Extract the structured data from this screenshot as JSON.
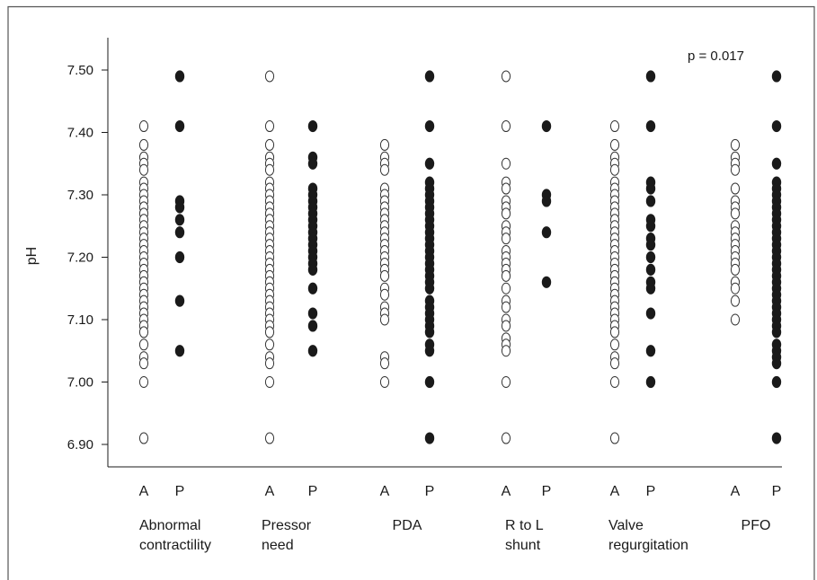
{
  "chart_data": {
    "type": "scatter",
    "ylabel": "pH",
    "ylim": [
      6.86,
      7.56
    ],
    "y_ticks": [
      "6.90",
      "7.00",
      "7.10",
      "7.20",
      "7.30",
      "7.40",
      "7.50"
    ],
    "annotation": "p = 0.017",
    "series": [
      {
        "name": "A",
        "style": "open"
      },
      {
        "name": "P",
        "style": "filled"
      }
    ],
    "groups": [
      {
        "label_lines": [
          "Abnormal",
          "contractility"
        ],
        "A": [
          7.41,
          7.38,
          7.36,
          7.35,
          7.34,
          7.32,
          7.31,
          7.3,
          7.29,
          7.28,
          7.27,
          7.26,
          7.25,
          7.24,
          7.23,
          7.22,
          7.21,
          7.2,
          7.19,
          7.18,
          7.17,
          7.16,
          7.15,
          7.14,
          7.13,
          7.12,
          7.11,
          7.1,
          7.09,
          7.08,
          7.06,
          7.04,
          7.03,
          7.0,
          6.91
        ],
        "P": [
          7.49,
          7.41,
          7.29,
          7.28,
          7.26,
          7.24,
          7.2,
          7.13,
          7.05
        ]
      },
      {
        "label_lines": [
          "Pressor",
          "need"
        ],
        "A": [
          7.49,
          7.41,
          7.38,
          7.36,
          7.35,
          7.34,
          7.32,
          7.31,
          7.3,
          7.29,
          7.28,
          7.27,
          7.26,
          7.25,
          7.24,
          7.23,
          7.22,
          7.21,
          7.2,
          7.19,
          7.18,
          7.17,
          7.16,
          7.15,
          7.14,
          7.13,
          7.12,
          7.11,
          7.1,
          7.09,
          7.08,
          7.06,
          7.04,
          7.03,
          7.0,
          6.91
        ],
        "P": [
          7.41,
          7.36,
          7.35,
          7.31,
          7.3,
          7.29,
          7.28,
          7.27,
          7.26,
          7.25,
          7.24,
          7.23,
          7.22,
          7.21,
          7.2,
          7.19,
          7.18,
          7.15,
          7.11,
          7.09,
          7.05
        ]
      },
      {
        "label_lines": [
          "PDA"
        ],
        "A": [
          7.38,
          7.36,
          7.35,
          7.34,
          7.31,
          7.3,
          7.29,
          7.28,
          7.27,
          7.26,
          7.25,
          7.24,
          7.23,
          7.22,
          7.21,
          7.2,
          7.19,
          7.18,
          7.17,
          7.15,
          7.14,
          7.12,
          7.11,
          7.1,
          7.04,
          7.03,
          7.0
        ],
        "P": [
          7.49,
          7.41,
          7.35,
          7.32,
          7.31,
          7.3,
          7.29,
          7.28,
          7.27,
          7.26,
          7.25,
          7.24,
          7.23,
          7.22,
          7.21,
          7.2,
          7.19,
          7.18,
          7.17,
          7.16,
          7.15,
          7.13,
          7.12,
          7.11,
          7.1,
          7.09,
          7.08,
          7.06,
          7.05,
          7.0,
          6.91
        ]
      },
      {
        "label_lines": [
          "R to L",
          "shunt"
        ],
        "A": [
          7.49,
          7.41,
          7.35,
          7.32,
          7.31,
          7.29,
          7.28,
          7.27,
          7.25,
          7.24,
          7.23,
          7.21,
          7.2,
          7.19,
          7.18,
          7.17,
          7.15,
          7.13,
          7.12,
          7.1,
          7.09,
          7.07,
          7.06,
          7.05,
          7.0,
          6.91
        ],
        "P": [
          7.41,
          7.3,
          7.29,
          7.24,
          7.16
        ]
      },
      {
        "label_lines": [
          "Valve",
          "regurgitation"
        ],
        "A": [
          7.41,
          7.38,
          7.36,
          7.35,
          7.34,
          7.32,
          7.31,
          7.3,
          7.29,
          7.28,
          7.27,
          7.26,
          7.25,
          7.24,
          7.23,
          7.22,
          7.21,
          7.2,
          7.19,
          7.18,
          7.17,
          7.16,
          7.15,
          7.14,
          7.13,
          7.12,
          7.11,
          7.1,
          7.09,
          7.08,
          7.06,
          7.04,
          7.03,
          7.0,
          6.91
        ],
        "P": [
          7.49,
          7.41,
          7.32,
          7.31,
          7.29,
          7.26,
          7.25,
          7.23,
          7.22,
          7.2,
          7.18,
          7.16,
          7.15,
          7.11,
          7.05,
          7.0
        ]
      },
      {
        "label_lines": [
          "PFO"
        ],
        "A": [
          7.38,
          7.36,
          7.35,
          7.34,
          7.31,
          7.29,
          7.28,
          7.27,
          7.25,
          7.24,
          7.23,
          7.22,
          7.21,
          7.2,
          7.19,
          7.18,
          7.16,
          7.15,
          7.13,
          7.1
        ],
        "P": [
          7.49,
          7.41,
          7.35,
          7.32,
          7.31,
          7.3,
          7.29,
          7.28,
          7.27,
          7.26,
          7.25,
          7.24,
          7.23,
          7.22,
          7.21,
          7.2,
          7.19,
          7.18,
          7.17,
          7.16,
          7.15,
          7.14,
          7.13,
          7.12,
          7.11,
          7.1,
          7.09,
          7.08,
          7.06,
          7.05,
          7.04,
          7.03,
          7.0,
          6.91
        ]
      }
    ]
  }
}
